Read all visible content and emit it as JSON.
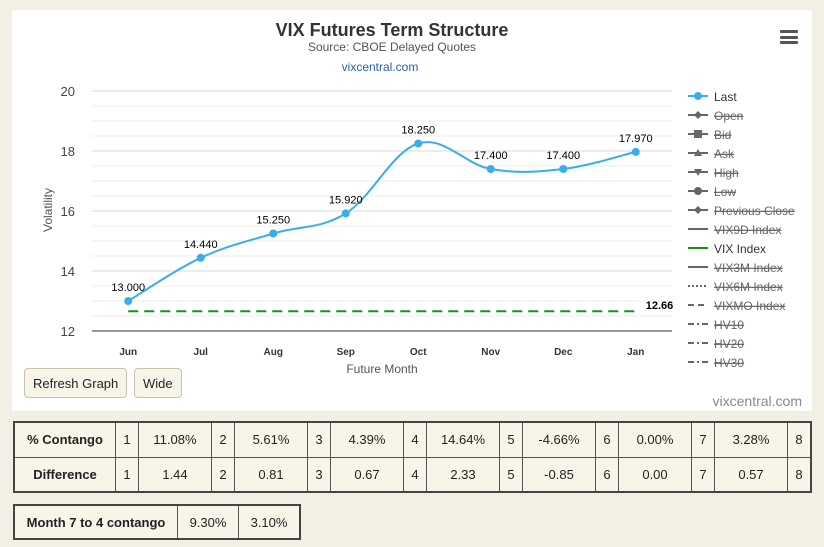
{
  "chart_data": {
    "type": "line",
    "title": "VIX Futures Term Structure",
    "subtitle": "Source: CBOE Delayed Quotes",
    "source_link": "vixcentral.com",
    "credit": "vixcentral.com",
    "xlabel": "Future Month",
    "ylabel": "Volatility",
    "categories": [
      "Jun",
      "Jul",
      "Aug",
      "Sep",
      "Oct",
      "Nov",
      "Dec",
      "Jan"
    ],
    "ylim": [
      12,
      20
    ],
    "yticks": [
      "12",
      "14",
      "16",
      "18",
      "20"
    ],
    "grid": true,
    "legend_placement": "right",
    "series": [
      {
        "name": "Last",
        "values": [
          13.0,
          14.44,
          15.25,
          15.92,
          18.25,
          17.4,
          17.4,
          17.97
        ],
        "labels": [
          "13.000",
          "14.440",
          "15.250",
          "15.920",
          "18.250",
          "17.400",
          "17.400",
          "17.970"
        ],
        "color": "#3aaee9"
      },
      {
        "name": "VIX Index",
        "value": 12.66,
        "label": "12.66",
        "color": "#1a8f1a",
        "style": "dashed"
      }
    ],
    "legend": [
      {
        "name": "Last",
        "marker": "circle",
        "active": true,
        "color": "#3aaee9"
      },
      {
        "name": "Open",
        "marker": "diamond",
        "active": false
      },
      {
        "name": "Bid",
        "marker": "square",
        "active": false
      },
      {
        "name": "Ask",
        "marker": "triangle-up",
        "active": false
      },
      {
        "name": "High",
        "marker": "triangle-down",
        "active": false
      },
      {
        "name": "Low",
        "marker": "circle",
        "active": false
      },
      {
        "name": "Previous Close",
        "marker": "diamond",
        "active": false
      },
      {
        "name": "VIX9D Index",
        "marker": "solid",
        "active": false
      },
      {
        "name": "VIX Index",
        "marker": "solid-green",
        "active": true,
        "color": "#1a8f1a"
      },
      {
        "name": "VIX3M Index",
        "marker": "solid",
        "active": false
      },
      {
        "name": "VIX6M Index",
        "marker": "dotted",
        "active": false
      },
      {
        "name": "VIXMO Index",
        "marker": "dash",
        "active": false
      },
      {
        "name": "HV10",
        "marker": "dashdot",
        "active": false
      },
      {
        "name": "HV20",
        "marker": "dashdot",
        "active": false
      },
      {
        "name": "HV30",
        "marker": "dashdot",
        "active": false
      }
    ]
  },
  "buttons": {
    "refresh": "Refresh Graph",
    "wide": "Wide"
  },
  "icons": {
    "menu": "hamburger-menu-icon"
  },
  "contango_table": {
    "rows": [
      {
        "label": "% Contango",
        "cells": [
          {
            "idx": "1",
            "val": "11.08%"
          },
          {
            "idx": "2",
            "val": "5.61%"
          },
          {
            "idx": "3",
            "val": "4.39%"
          },
          {
            "idx": "4",
            "val": "14.64%"
          },
          {
            "idx": "5",
            "val": "-4.66%"
          },
          {
            "idx": "6",
            "val": "0.00%"
          },
          {
            "idx": "7",
            "val": "3.28%"
          },
          {
            "idx": "8",
            "val": ""
          }
        ]
      },
      {
        "label": "Difference",
        "cells": [
          {
            "idx": "1",
            "val": "1.44"
          },
          {
            "idx": "2",
            "val": "0.81"
          },
          {
            "idx": "3",
            "val": "0.67"
          },
          {
            "idx": "4",
            "val": "2.33"
          },
          {
            "idx": "5",
            "val": "-0.85"
          },
          {
            "idx": "6",
            "val": "0.00"
          },
          {
            "idx": "7",
            "val": "0.57"
          },
          {
            "idx": "8",
            "val": ""
          }
        ]
      }
    ]
  },
  "summary_table": {
    "label": "Month 7 to 4 contango",
    "values": [
      "9.30%",
      "3.10%"
    ]
  }
}
